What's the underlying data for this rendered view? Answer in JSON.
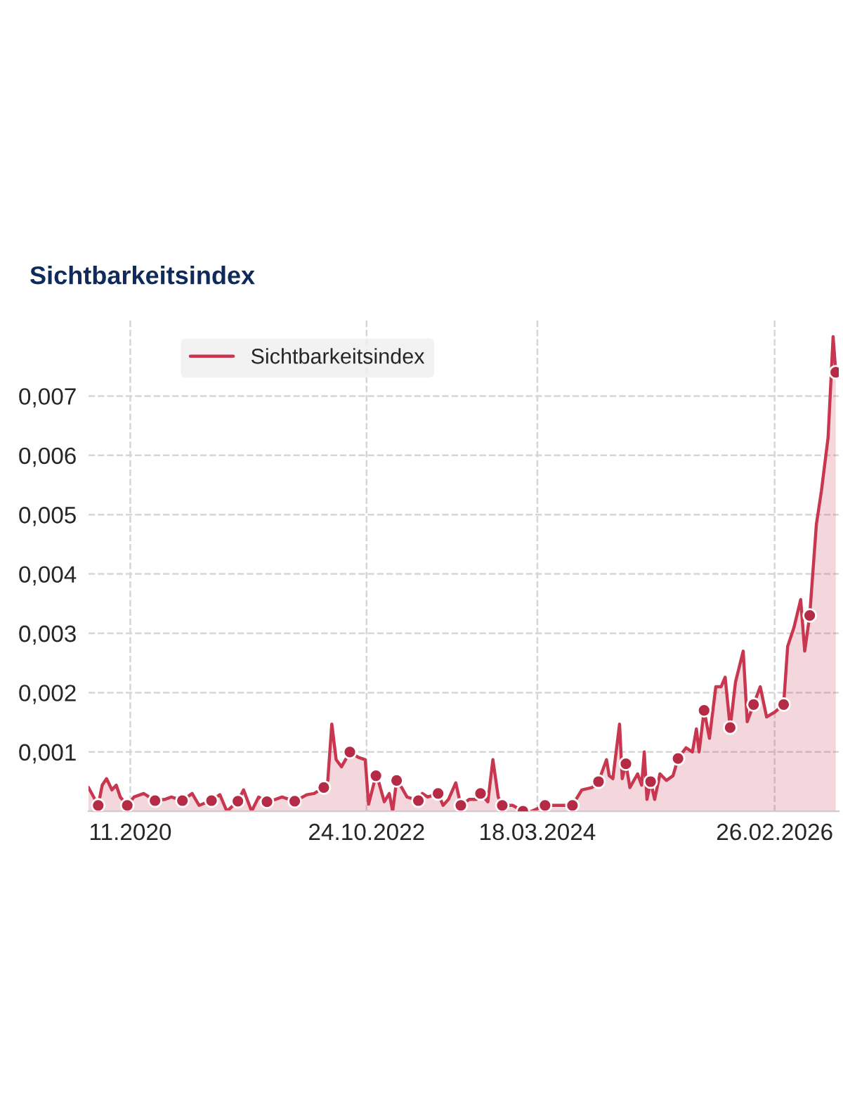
{
  "chart_data": {
    "type": "area",
    "title": "Sichtbarkeitsindex",
    "xlim": [
      "2020-07-14",
      "2026-09-06"
    ],
    "xticks": [
      {
        "value": "2020-11-16",
        "label": "11.2020"
      },
      {
        "value": "2022-10-24",
        "label": "24.10.2022"
      },
      {
        "value": "2024-03-18",
        "label": "18.03.2024"
      },
      {
        "value": "2026-02-26",
        "label": "26.02.2026"
      }
    ],
    "ylim": [
      0,
      0.0083
    ],
    "yticks": [
      {
        "value": 0.001,
        "label": "0,001"
      },
      {
        "value": 0.002,
        "label": "0,002"
      },
      {
        "value": 0.003,
        "label": "0,003"
      },
      {
        "value": 0.004,
        "label": "0,004"
      },
      {
        "value": 0.005,
        "label": "0,005"
      },
      {
        "value": 0.006,
        "label": "0,006"
      },
      {
        "value": 0.007,
        "label": "0,007"
      }
    ],
    "grid": true,
    "legend": "top left",
    "line_style": "solid",
    "series": [
      {
        "name": "Sichtbarkeitsindex",
        "color": "#c8374f",
        "marker": "none",
        "x": [
          "2020-07-14",
          "2020-08-12",
          "2020-08-24",
          "2020-09-06",
          "2020-09-22",
          "2020-10-05",
          "2020-10-17",
          "2020-11-07",
          "2020-11-27",
          "2020-12-26",
          "2021-01-29",
          "2021-02-27",
          "2021-03-19",
          "2021-04-21",
          "2021-05-20",
          "2021-06-10",
          "2021-07-17",
          "2021-08-11",
          "2021-09-01",
          "2021-10-04",
          "2021-10-21",
          "2021-11-14",
          "2021-12-05",
          "2021-12-30",
          "2022-01-24",
          "2022-02-13",
          "2022-03-23",
          "2022-04-29",
          "2022-05-20",
          "2022-06-18",
          "2022-06-30",
          "2022-07-12",
          "2022-07-25",
          "2022-08-10",
          "2022-09-04",
          "2022-09-29",
          "2022-10-20",
          "2022-10-30",
          "2022-11-21",
          "2022-11-30",
          "2022-12-16",
          "2022-12-31",
          "2023-01-10",
          "2023-01-22",
          "2023-02-06",
          "2023-02-22",
          "2023-03-28",
          "2023-04-09",
          "2023-04-25",
          "2023-05-26",
          "2023-06-10",
          "2023-06-26",
          "2023-07-18",
          "2023-08-02",
          "2023-08-27",
          "2023-09-18",
          "2023-09-30",
          "2023-10-22",
          "2023-11-06",
          "2023-11-22",
          "2023-12-04",
          "2024-01-04",
          "2024-02-04",
          "2024-02-29",
          "2024-04-10",
          "2024-07-01",
          "2024-07-29",
          "2024-08-29",
          "2024-09-17",
          "2024-10-11",
          "2024-10-19",
          "2024-10-30",
          "2024-11-19",
          "2024-11-27",
          "2024-12-08",
          "2024-12-20",
          "2025-01-12",
          "2025-01-24",
          "2025-02-01",
          "2025-02-09",
          "2025-02-20",
          "2025-03-04",
          "2025-03-20",
          "2025-04-08",
          "2025-04-28",
          "2025-05-13",
          "2025-06-06",
          "2025-06-25",
          "2025-07-07",
          "2025-07-15",
          "2025-07-30",
          "2025-08-15",
          "2025-09-03",
          "2025-09-19",
          "2025-10-01",
          "2025-10-16",
          "2025-11-01",
          "2025-11-24",
          "2025-12-06",
          "2025-12-25",
          "2026-01-14",
          "2026-02-02",
          "2026-02-26",
          "2026-03-25",
          "2026-04-06",
          "2026-04-25",
          "2026-05-15",
          "2026-05-27",
          "2026-06-11",
          "2026-07-01",
          "2026-07-16",
          "2026-08-05",
          "2026-08-20",
          "2026-08-28"
        ],
        "values": [
          0.0004,
          0.0001,
          0.00044,
          0.00055,
          0.00036,
          0.00044,
          0.00024,
          0.0001,
          0.00024,
          0.0003,
          0.00018,
          0.0002,
          0.00024,
          0.00018,
          0.0003,
          0.0001,
          0.00018,
          0.00028,
          0.0,
          0.00017,
          0.00036,
          0.0,
          0.00024,
          0.00016,
          0.0002,
          0.00024,
          0.00017,
          0.00028,
          0.0003,
          0.0004,
          0.00052,
          0.00147,
          0.00087,
          0.00075,
          0.001,
          0.00091,
          0.00087,
          0.00012,
          0.0006,
          0.00048,
          0.00016,
          0.0003,
          0.0,
          0.00052,
          0.0004,
          0.00024,
          0.00018,
          0.0003,
          0.00024,
          0.0003,
          0.0001,
          0.0002,
          0.00048,
          0.0001,
          0.0002,
          0.0002,
          0.0003,
          0.00016,
          0.00087,
          0.00024,
          0.0001,
          0.0001,
          0.0,
          0.0,
          0.0001,
          0.0001,
          0.00036,
          0.0004,
          0.0005,
          0.00087,
          0.0006,
          0.00055,
          0.00147,
          0.00055,
          0.0008,
          0.0004,
          0.00063,
          0.00044,
          0.001,
          0.0002,
          0.0005,
          0.0002,
          0.00063,
          0.00052,
          0.0006,
          0.00089,
          0.00107,
          0.001,
          0.00139,
          0.001,
          0.0017,
          0.00123,
          0.0021,
          0.0021,
          0.00226,
          0.00141,
          0.00218,
          0.0027,
          0.00151,
          0.0018,
          0.0021,
          0.00159,
          0.00167,
          0.0018,
          0.00278,
          0.0031,
          0.00357,
          0.0027,
          0.0033,
          0.00484,
          0.0054,
          0.0063,
          0.008,
          0.0074
        ]
      },
      {
        "type": "scatter",
        "color": "#b52a44",
        "marker": "circle",
        "x": [
          "2020-08-12",
          "2020-11-07",
          "2021-01-29",
          "2021-04-21",
          "2021-07-17",
          "2021-10-04",
          "2021-12-30",
          "2022-03-23",
          "2022-06-18",
          "2022-09-04",
          "2022-11-21",
          "2023-01-22",
          "2023-03-28",
          "2023-05-26",
          "2023-08-02",
          "2023-09-30",
          "2023-12-04",
          "2024-02-04",
          "2024-04-10",
          "2024-07-01",
          "2024-09-17",
          "2024-12-08",
          "2025-02-20",
          "2025-05-13",
          "2025-07-30",
          "2025-10-16",
          "2025-12-25",
          "2026-03-25",
          "2026-06-11",
          "2026-08-28"
        ],
        "values": [
          0.0001,
          0.0001,
          0.00018,
          0.00018,
          0.00018,
          0.00017,
          0.00016,
          0.00017,
          0.0004,
          0.001,
          0.0006,
          0.00052,
          0.00018,
          0.0003,
          0.0001,
          0.0003,
          0.0001,
          0.0,
          0.0001,
          0.0001,
          0.0005,
          0.0008,
          0.0005,
          0.00089,
          0.0017,
          0.00141,
          0.0018,
          0.0018,
          0.0033,
          0.0074
        ]
      }
    ]
  }
}
